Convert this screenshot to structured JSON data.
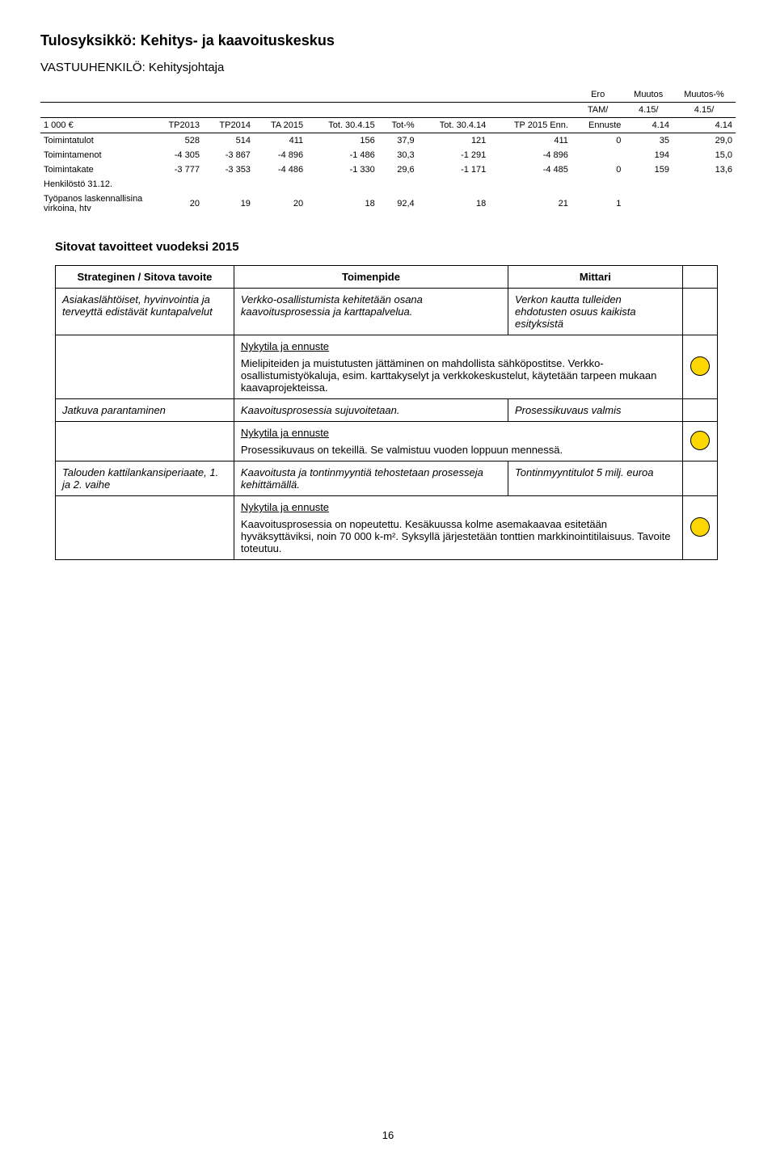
{
  "title": "Tulosyksikkö: Kehitys- ja kaavoituskeskus",
  "subtitle": "VASTUUHENKILÖ: Kehitysjohtaja",
  "fin": {
    "header_top": [
      "",
      "",
      "",
      "",
      "",
      "",
      "",
      "Ero",
      "Muutos",
      "Muutos-%"
    ],
    "header_mid": [
      "",
      "",
      "",
      "",
      "",
      "",
      "",
      "TAM/",
      "4.15/",
      "4.15/"
    ],
    "header_bot": [
      "1 000 €",
      "TP2013",
      "TP2014",
      "TA 2015",
      "Tot. 30.4.15",
      "Tot-%",
      "Tot. 30.4.14",
      "TP 2015 Enn.",
      "Ennuste",
      "4.14",
      "4.14"
    ],
    "rows": [
      {
        "label": "Toimintatulot",
        "cells": [
          "528",
          "514",
          "411",
          "156",
          "37,9",
          "121",
          "411",
          "0",
          "35",
          "29,0"
        ]
      },
      {
        "label": "Toimintamenot",
        "cells": [
          "-4 305",
          "-3 867",
          "-4 896",
          "-1 486",
          "30,3",
          "-1 291",
          "-4 896",
          "",
          "194",
          "15,0"
        ]
      },
      {
        "label": "Toimintakate",
        "cells": [
          "-3 777",
          "-3 353",
          "-4 486",
          "-1 330",
          "29,6",
          "-1 171",
          "-4 485",
          "0",
          "159",
          "13,6"
        ]
      }
    ],
    "hdr_row": {
      "label": "Henkilöstö 31.12."
    },
    "htv_row": {
      "label1": "Työpanos laskennallisina",
      "label2": "virkoina, htv",
      "cells": [
        "20",
        "19",
        "20",
        "18",
        "92,4",
        "18",
        "21",
        "1",
        "",
        ""
      ]
    }
  },
  "sectionTitle": "Sitovat tavoitteet vuodeksi 2015",
  "table": {
    "head": [
      "Strateginen / Sitova tavoite",
      "Toimenpide",
      "Mittari",
      ""
    ],
    "rowA": {
      "left": "Asiakaslähtöiset, hyvinvointia ja terveyttä edistävät kuntapalvelut",
      "mid": "Verkko-osallistumista kehitetään osana kaavoitusprosessia ja karttapalvelua.",
      "right": "Verkon kautta tulleiden ehdotusten osuus kaikista esityksistä"
    },
    "nykA": {
      "head": "Nykytila ja ennuste",
      "body": "Mielipiteiden ja muistutusten jättäminen on mahdollista sähköpostitse. Verkko-osallistumistyökaluja, esim. karttakyselyt ja verkkokeskustelut, käytetään tarpeen mukaan kaavaprojekteissa."
    },
    "rowB": {
      "left": "Jatkuva parantaminen",
      "mid": "Kaavoitusprosessia sujuvoitetaan.",
      "right": "Prosessikuvaus valmis"
    },
    "nykB": {
      "head": "Nykytila ja ennuste",
      "body": "Prosessikuvaus on tekeillä. Se valmistuu vuoden loppuun mennessä."
    },
    "rowC": {
      "left": "Talouden kattilankansiperiaate, 1. ja 2. vaihe",
      "mid": "Kaavoitusta ja tontinmyyntiä tehostetaan prosesseja kehittämällä.",
      "right": "Tontinmyyntitulot 5 milj. euroa"
    },
    "nykC": {
      "head": "Nykytila ja ennuste",
      "body": "Kaavoitusprosessia on nopeutettu. Kesäkuussa kolme asemakaavaa esitetään hyväksyttäviksi, noin 70 000 k-m². Syksyllä järjestetään tonttien markkinointitilaisuus. Tavoite toteutuu."
    }
  },
  "indicator_color": "#ffd700",
  "indicator_border": "#000000",
  "page_number": "16"
}
